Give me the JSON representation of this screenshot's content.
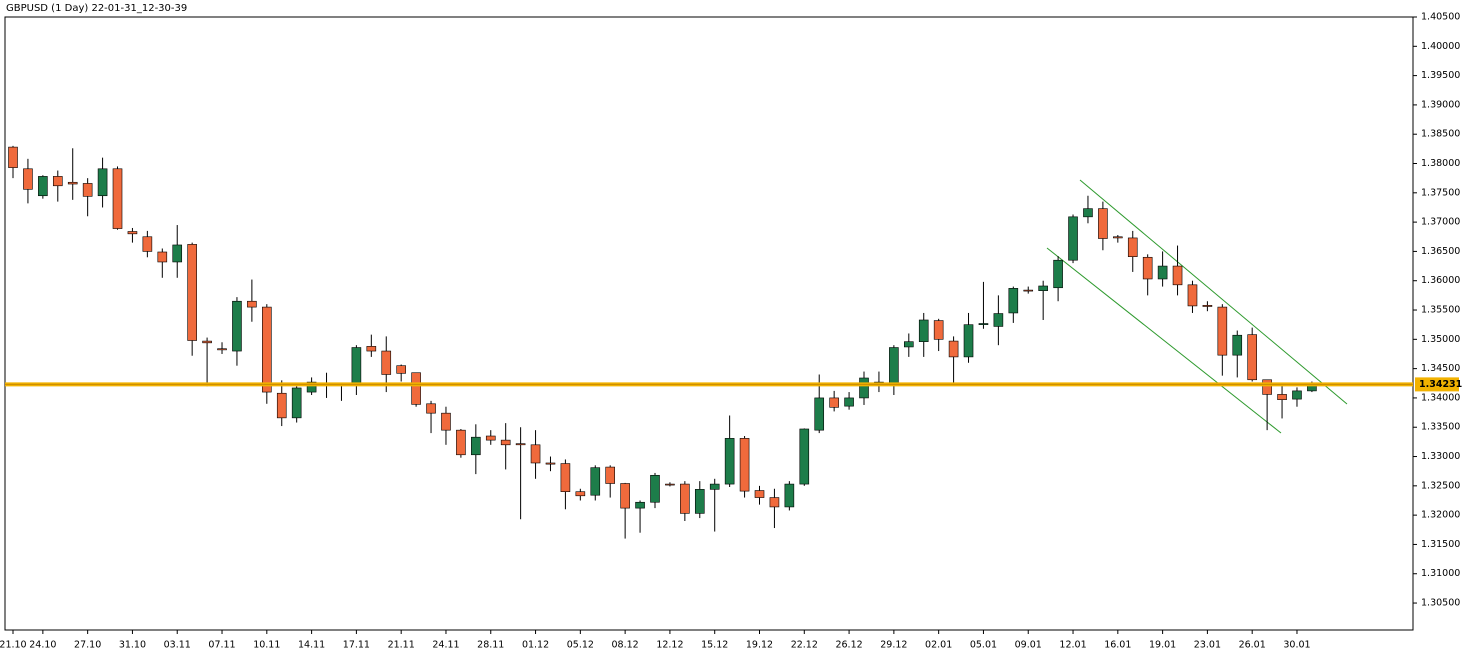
{
  "chart_data": {
    "type": "candlestick",
    "title": "GBPUSD (1 Day) 22-01-31_12-30-39",
    "categories": [
      "21.10",
      null,
      "24.10",
      null,
      null,
      "27.10",
      null,
      null,
      "31.10",
      null,
      null,
      "03.11",
      null,
      null,
      "07.11",
      null,
      null,
      "10.11",
      null,
      null,
      "14.11",
      null,
      null,
      "17.11",
      null,
      null,
      "21.11",
      null,
      null,
      "24.11",
      null,
      null,
      "28.11",
      null,
      null,
      "01.12",
      null,
      null,
      "05.12",
      null,
      null,
      "08.12",
      null,
      null,
      "12.12",
      null,
      null,
      "15.12",
      null,
      null,
      "19.12",
      null,
      null,
      "22.12",
      null,
      null,
      "26.12",
      null,
      null,
      "29.12",
      null,
      null,
      "02.01",
      null,
      null,
      "05.01",
      null,
      null,
      "09.01",
      null,
      null,
      "12.01",
      null,
      null,
      "16.01",
      null,
      null,
      "19.01",
      null,
      null,
      "23.01",
      null,
      null,
      "26.01",
      null,
      null,
      "30.01",
      null
    ],
    "open": [
      1.3828,
      1.3791,
      1.3745,
      1.3778,
      1.3768,
      1.3766,
      1.3745,
      1.3791,
      1.3684,
      1.3675,
      1.3649,
      1.3632,
      1.3662,
      1.3497,
      1.3484,
      1.348,
      1.3565,
      1.3555,
      1.3408,
      1.3366,
      1.341,
      1.3425,
      1.3424,
      1.3423,
      1.3488,
      1.348,
      1.3455,
      1.3443,
      1.339,
      1.3374,
      1.3345,
      1.3303,
      1.3335,
      1.3328,
      1.3322,
      1.332,
      1.3289,
      1.3288,
      1.324,
      1.3234,
      1.3282,
      1.3254,
      1.3212,
      1.3222,
      1.3253,
      1.3253,
      1.3203,
      1.3244,
      1.3253,
      1.3331,
      1.3242,
      1.323,
      1.3214,
      1.3253,
      1.3345,
      1.34,
      1.3386,
      1.34,
      1.3425,
      1.3425,
      1.3487,
      1.3496,
      1.3532,
      1.3497,
      1.347,
      1.3525,
      1.3522,
      1.3545,
      1.3584,
      1.3583,
      1.3588,
      1.3635,
      1.3709,
      1.3723,
      1.3675,
      1.3673,
      1.364,
      1.3603,
      1.3625,
      1.3593,
      1.3558,
      1.3555,
      1.3473,
      1.3508,
      1.3431,
      1.3406,
      1.3398,
      1.3412
    ],
    "high": [
      1.383,
      1.3808,
      1.378,
      1.3788,
      1.3826,
      1.3775,
      1.381,
      1.3795,
      1.369,
      1.3685,
      1.3655,
      1.3695,
      1.3665,
      1.3503,
      1.3495,
      1.3572,
      1.3602,
      1.356,
      1.343,
      1.342,
      1.3435,
      1.3443,
      1.3425,
      1.349,
      1.3508,
      1.3505,
      1.3457,
      1.3443,
      1.3395,
      1.3385,
      1.3347,
      1.3355,
      1.3345,
      1.3357,
      1.335,
      1.3345,
      1.33,
      1.3295,
      1.3245,
      1.3285,
      1.3285,
      1.3255,
      1.3225,
      1.3272,
      1.3256,
      1.3258,
      1.3258,
      1.3262,
      1.337,
      1.3335,
      1.325,
      1.3245,
      1.3258,
      1.3348,
      1.344,
      1.3412,
      1.341,
      1.3445,
      1.3445,
      1.349,
      1.351,
      1.3545,
      1.3535,
      1.3505,
      1.3545,
      1.3598,
      1.3575,
      1.359,
      1.359,
      1.36,
      1.3642,
      1.3713,
      1.3745,
      1.3735,
      1.3678,
      1.3685,
      1.3645,
      1.365,
      1.366,
      1.36,
      1.3565,
      1.356,
      1.3515,
      1.352,
      1.3431,
      1.3425,
      1.3418,
      1.3428
    ],
    "low": [
      1.3775,
      1.3732,
      1.374,
      1.3735,
      1.3738,
      1.371,
      1.3725,
      1.3687,
      1.3665,
      1.364,
      1.3605,
      1.3605,
      1.3472,
      1.342,
      1.3475,
      1.3455,
      1.353,
      1.339,
      1.3352,
      1.3358,
      1.3405,
      1.34,
      1.3395,
      1.3405,
      1.347,
      1.341,
      1.3428,
      1.3385,
      1.334,
      1.332,
      1.3298,
      1.327,
      1.332,
      1.3278,
      1.3193,
      1.3262,
      1.3275,
      1.321,
      1.3225,
      1.3225,
      1.323,
      1.316,
      1.317,
      1.3212,
      1.3249,
      1.319,
      1.3195,
      1.3172,
      1.3248,
      1.323,
      1.3218,
      1.3178,
      1.3208,
      1.325,
      1.334,
      1.3377,
      1.338,
      1.3388,
      1.341,
      1.3405,
      1.347,
      1.347,
      1.348,
      1.3425,
      1.346,
      1.3518,
      1.349,
      1.3528,
      1.3578,
      1.3533,
      1.3565,
      1.363,
      1.3698,
      1.3652,
      1.3665,
      1.3615,
      1.3575,
      1.359,
      1.3575,
      1.3545,
      1.3548,
      1.3438,
      1.3435,
      1.3428,
      1.3345,
      1.3365,
      1.3385,
      1.341
    ],
    "close": [
      1.3793,
      1.3756,
      1.3778,
      1.3762,
      1.3765,
      1.3744,
      1.3791,
      1.3689,
      1.368,
      1.365,
      1.3632,
      1.3661,
      1.3498,
      1.3494,
      1.3482,
      1.3565,
      1.3555,
      1.341,
      1.3366,
      1.3417,
      1.3427,
      1.3423,
      1.3423,
      1.3486,
      1.348,
      1.344,
      1.3442,
      1.3389,
      1.3374,
      1.3345,
      1.3303,
      1.3333,
      1.3328,
      1.332,
      1.332,
      1.3289,
      1.3287,
      1.324,
      1.3233,
      1.3281,
      1.3254,
      1.3212,
      1.3222,
      1.3268,
      1.3252,
      1.3203,
      1.3244,
      1.3253,
      1.3331,
      1.3241,
      1.323,
      1.3214,
      1.3253,
      1.3347,
      1.34,
      1.3384,
      1.34,
      1.3434,
      1.3427,
      1.3486,
      1.3496,
      1.3533,
      1.35,
      1.347,
      1.3525,
      1.3527,
      1.3544,
      1.3587,
      1.3583,
      1.3591,
      1.3635,
      1.3709,
      1.3723,
      1.3672,
      1.3673,
      1.3641,
      1.3603,
      1.3625,
      1.3593,
      1.3557,
      1.3556,
      1.3473,
      1.3507,
      1.3431,
      1.3406,
      1.3397,
      1.3412,
      1.3423
    ],
    "up_color": "#1d7d4a",
    "down_color": "#f06a3c",
    "current_price": 1.34231,
    "price_line_color": "#f2b200",
    "ylim": [
      1.3004,
      1.405
    ],
    "yticks": [
      {
        "value": 1.305,
        "label": "1.30500"
      },
      {
        "value": 1.31,
        "label": "1.31000"
      },
      {
        "value": 1.315,
        "label": "1.31500"
      },
      {
        "value": 1.32,
        "label": "1.32000"
      },
      {
        "value": 1.325,
        "label": "1.32500"
      },
      {
        "value": 1.33,
        "label": "1.33000"
      },
      {
        "value": 1.335,
        "label": "1.33500"
      },
      {
        "value": 1.34,
        "label": "1.34000"
      },
      {
        "value": 1.345,
        "label": "1.34500"
      },
      {
        "value": 1.35,
        "label": "1.35000"
      },
      {
        "value": 1.355,
        "label": "1.35500"
      },
      {
        "value": 1.36,
        "label": "1.36000"
      },
      {
        "value": 1.365,
        "label": "1.36500"
      },
      {
        "value": 1.37,
        "label": "1.37000"
      },
      {
        "value": 1.375,
        "label": "1.37500"
      },
      {
        "value": 1.38,
        "label": "1.38000"
      },
      {
        "value": 1.385,
        "label": "1.38500"
      },
      {
        "value": 1.39,
        "label": "1.39000"
      },
      {
        "value": 1.395,
        "label": "1.39500"
      },
      {
        "value": 1.4,
        "label": "1.40000"
      },
      {
        "value": 1.405,
        "label": "1.40500"
      }
    ],
    "grid": false
  }
}
